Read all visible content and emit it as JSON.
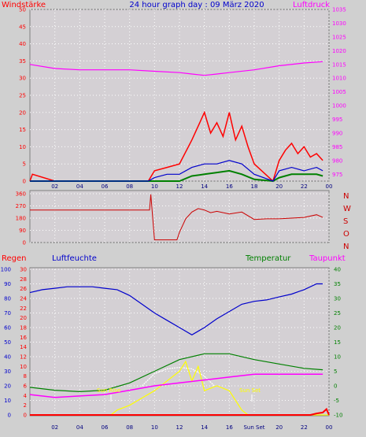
{
  "header": {
    "wind_label": "Windstärke",
    "title": "24 hour graph day : 09 März 2020",
    "pressure_label": "Luftdruck"
  },
  "direction_labels": [
    "N",
    "W",
    "S",
    "O",
    "N"
  ],
  "bottom_header": {
    "rain_label": "Regen",
    "humidity_label": "Luftfeuchte",
    "temperature_label": "Temperatur",
    "dewpoint_label": "Taupunkt"
  },
  "markers": {
    "sun_rise": "Sun Rise",
    "sun_set": "Sun Set"
  },
  "colors": {
    "wind": "#ff0000",
    "wind_avg": "#0000cc",
    "wind_fill": "#008000",
    "pressure": "#ff00ff",
    "direction": "#cc0000",
    "humidity": "#0000cc",
    "temperature": "#008000",
    "dewpoint": "#ff00ff",
    "solar": "#ffff00",
    "uv": "#ffffff",
    "rain": "#ff0000",
    "axis_left_top": "#ff0000",
    "axis_right_top": "#ff00ff"
  },
  "chart_data": [
    {
      "type": "line",
      "panel": "wind_pressure",
      "x_ticks": [
        "02",
        "04",
        "06",
        "08",
        "10",
        "12",
        "14",
        "16",
        "18",
        "20",
        "22",
        "00"
      ],
      "xlim": [
        0,
        24
      ],
      "left_axis": {
        "ticks": [
          0,
          5,
          10,
          15,
          20,
          25,
          30,
          35,
          40,
          45,
          50
        ],
        "ylim": [
          0,
          50
        ]
      },
      "right_axis": {
        "ticks": [
          975,
          980,
          985,
          990,
          995,
          1000,
          1005,
          1010,
          1015,
          1020,
          1025,
          1030,
          1035
        ],
        "ylim": [
          972.5,
          1035
        ]
      },
      "series": [
        {
          "axis": "right",
          "x": [
            0,
            2,
            4,
            6,
            8,
            10,
            12,
            13,
            14,
            15,
            16,
            18,
            20,
            22,
            23.5
          ],
          "values": [
            1015,
            1013.5,
            1013,
            1013,
            1013,
            1012.5,
            1012,
            1011.5,
            1011,
            1011.5,
            1012,
            1013,
            1014.5,
            1015.5,
            1016
          ]
        },
        {
          "axis": "left",
          "x": [
            0,
            0.2,
            2,
            9.5,
            10,
            11,
            12,
            13,
            13.5,
            14,
            14.5,
            15,
            15.5,
            16,
            16.5,
            17,
            17.5,
            18,
            19.5,
            20,
            20.5,
            21,
            21.5,
            22,
            22.5,
            23,
            23.5
          ],
          "values": [
            0,
            2,
            0,
            0,
            3,
            4,
            5,
            12,
            16,
            20,
            14,
            17,
            13,
            20,
            12,
            16,
            10,
            5,
            0,
            6,
            9,
            11,
            8,
            10,
            7,
            8,
            6
          ]
        },
        {
          "axis": "left",
          "x": [
            0,
            9.5,
            10,
            11,
            12,
            13,
            14,
            15,
            16,
            17,
            18,
            19.5,
            20,
            21,
            22,
            23,
            23.5
          ],
          "values": [
            0,
            0,
            1,
            2,
            2,
            4,
            5,
            5,
            6,
            5,
            2,
            0,
            3,
            4,
            3,
            4,
            3
          ]
        },
        {
          "axis": "left",
          "x": [
            0,
            12,
            13,
            14,
            15,
            16,
            17,
            18,
            19.5,
            20,
            21,
            22,
            23,
            23.5
          ],
          "values": [
            0,
            0,
            1.5,
            2,
            2.5,
            3,
            2,
            0.5,
            0,
            1,
            2,
            2,
            2,
            1.5
          ]
        }
      ]
    },
    {
      "type": "line",
      "panel": "wind_direction",
      "x_ticks": [
        "02",
        "04",
        "06",
        "08",
        "10",
        "12",
        "14",
        "16",
        "18",
        "20",
        "22",
        "00"
      ],
      "xlim": [
        0,
        24
      ],
      "y_ticks": [
        0,
        90,
        180,
        270,
        360
      ],
      "ylim": [
        0,
        360
      ],
      "series": [
        {
          "x": [
            0,
            9.2,
            9.6,
            9.7,
            10,
            11,
            11.8,
            12,
            12.5,
            13,
            13.5,
            14,
            14.5,
            15,
            16,
            17,
            18,
            19,
            20,
            21,
            22,
            23,
            23.5
          ],
          "values": [
            240,
            240,
            240,
            355,
            20,
            20,
            20,
            75,
            175,
            225,
            250,
            240,
            220,
            230,
            210,
            225,
            170,
            175,
            175,
            180,
            185,
            205,
            185
          ]
        }
      ]
    },
    {
      "type": "line",
      "panel": "temperature_humidity",
      "x_ticks": [
        "02",
        "04",
        "06",
        "08",
        "10",
        "12",
        "14",
        "16",
        "Sun Set",
        "20",
        "22",
        "00"
      ],
      "xlim": [
        0,
        24
      ],
      "humidity_axis": {
        "ticks": [
          0,
          10,
          20,
          30,
          40,
          50,
          60,
          70,
          80,
          90,
          100
        ],
        "ylim": [
          0,
          100
        ]
      },
      "rain_axis": {
        "ticks": [
          0,
          2,
          4,
          6,
          8,
          10,
          12,
          14,
          16,
          18,
          20,
          22,
          24,
          26,
          28,
          30
        ],
        "ylim": [
          0,
          30
        ]
      },
      "temperature_axis": {
        "ticks": [
          -10,
          -5,
          0,
          5,
          10,
          15,
          20,
          25,
          30,
          35,
          40
        ],
        "ylim": [
          -10,
          40
        ]
      },
      "series": [
        {
          "name": "Luftfeuchte",
          "axis": "humidity",
          "x": [
            0,
            1,
            2,
            3,
            4,
            5,
            6,
            7,
            8,
            9,
            10,
            11,
            12,
            13,
            14,
            15,
            16,
            17,
            18,
            19,
            20,
            21,
            22,
            23,
            23.5
          ],
          "values": [
            84,
            86,
            87,
            88,
            88,
            88,
            87,
            86,
            82,
            76,
            70,
            65,
            60,
            55,
            60,
            66,
            71,
            76,
            78,
            79,
            81,
            83,
            86,
            90,
            90
          ]
        },
        {
          "name": "Temperatur",
          "axis": "temperature",
          "x": [
            0,
            2,
            4,
            6,
            8,
            10,
            12,
            14,
            16,
            18,
            20,
            22,
            23.5
          ],
          "values": [
            -0.5,
            -1.5,
            -2,
            -1.5,
            1,
            5,
            9,
            11,
            11,
            9,
            7.5,
            6,
            5.5
          ]
        },
        {
          "name": "Taupunkt",
          "axis": "temperature",
          "x": [
            0,
            2,
            4,
            6,
            8,
            10,
            12,
            14,
            16,
            18,
            20,
            22,
            23.5
          ],
          "values": [
            -3,
            -4,
            -3.5,
            -3,
            -1.5,
            0,
            1,
            2,
            3,
            4,
            4,
            4,
            4
          ]
        },
        {
          "axis": "rain",
          "x": [
            0,
            6.5,
            7,
            8,
            9,
            10,
            11,
            12,
            12.5,
            13,
            13.5,
            14,
            15,
            16,
            17,
            17.5,
            18,
            24
          ],
          "values": [
            0,
            0,
            1,
            2,
            3.5,
            5,
            7,
            9,
            11,
            7,
            10,
            5,
            6,
            5,
            1,
            0,
            0,
            0
          ]
        },
        {
          "axis": "rain",
          "x": [
            9,
            10,
            11,
            12,
            13,
            14,
            14.8
          ],
          "values": [
            6,
            8.5,
            9.5,
            9.8,
            9.5,
            8,
            6
          ]
        },
        {
          "axis": "rain",
          "x": [
            0,
            22.5,
            23,
            23.5,
            23.8,
            24
          ],
          "values": [
            0,
            0,
            0.3,
            0.5,
            1.2,
            0
          ]
        }
      ]
    }
  ]
}
